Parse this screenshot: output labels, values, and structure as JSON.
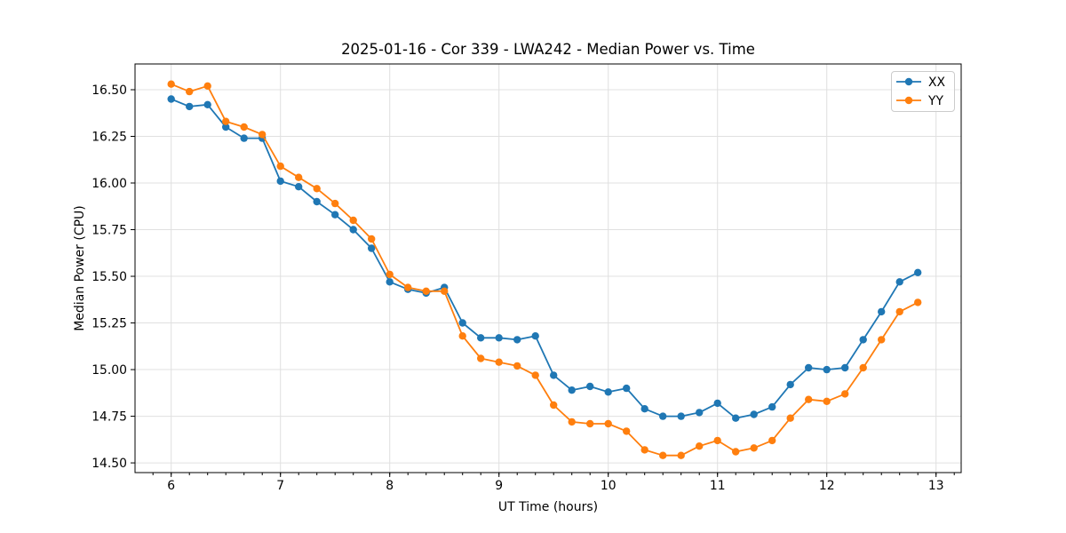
{
  "chart": {
    "title": "2025-01-16 - Cor 339 - LWA242 - Median Power vs. Time",
    "xlabel": "UT Time (hours)",
    "ylabel": "Median Power (CPU)"
  },
  "style": {
    "background": "#ffffff",
    "grid_color": "#e0e0e0",
    "spine_color": "#000000",
    "text_color": "#000000",
    "legend_border": "#cccccc",
    "legend_background": "#ffffff"
  },
  "chart_data": {
    "type": "line",
    "title": "2025-01-16 - Cor 339 - LWA242 - Median Power vs. Time",
    "xlabel": "UT Time (hours)",
    "ylabel": "Median Power (CPU)",
    "grid": true,
    "legend_position": "upper right",
    "xlim": [
      5.669,
      13.23
    ],
    "ylim": [
      14.448,
      16.638
    ],
    "x_ticks": [
      6,
      7,
      8,
      9,
      10,
      11,
      12,
      13
    ],
    "x_tick_labels": [
      "6",
      "7",
      "8",
      "9",
      "10",
      "11",
      "12",
      "13"
    ],
    "x_minor_step": 0.166667,
    "y_ticks": [
      14.5,
      14.75,
      15.0,
      15.25,
      15.5,
      15.75,
      16.0,
      16.25,
      16.5
    ],
    "y_tick_labels": [
      "14.50",
      "14.75",
      "15.00",
      "15.25",
      "15.50",
      "15.75",
      "16.00",
      "16.25",
      "16.50"
    ],
    "x": [
      6.0,
      6.1667,
      6.3333,
      6.5,
      6.6667,
      6.8333,
      7.0,
      7.1667,
      7.3333,
      7.5,
      7.6667,
      7.8333,
      8.0,
      8.1667,
      8.3333,
      8.5,
      8.6667,
      8.8333,
      9.0,
      9.1667,
      9.3333,
      9.5,
      9.6667,
      9.8333,
      10.0,
      10.1667,
      10.3333,
      10.5,
      10.6667,
      10.8333,
      11.0,
      11.1667,
      11.3333,
      11.5,
      11.6667,
      11.8333,
      12.0,
      12.1667,
      12.3333,
      12.5,
      12.6667,
      12.8333
    ],
    "series": [
      {
        "name": "XX",
        "color": "#1f77b4",
        "values": [
          16.45,
          16.41,
          16.42,
          16.3,
          16.24,
          16.24,
          16.01,
          15.98,
          15.9,
          15.83,
          15.75,
          15.65,
          15.47,
          15.43,
          15.41,
          15.44,
          15.25,
          15.17,
          15.17,
          15.16,
          15.18,
          14.97,
          14.89,
          14.91,
          14.88,
          14.9,
          14.79,
          14.75,
          14.75,
          14.77,
          14.82,
          14.74,
          14.76,
          14.8,
          14.92,
          15.01,
          15.0,
          15.01,
          15.16,
          15.31,
          15.47,
          15.52
        ]
      },
      {
        "name": "YY",
        "color": "#ff7f0e",
        "values": [
          16.53,
          16.49,
          16.52,
          16.33,
          16.3,
          16.26,
          16.09,
          16.03,
          15.97,
          15.89,
          15.8,
          15.7,
          15.51,
          15.44,
          15.42,
          15.42,
          15.18,
          15.06,
          15.04,
          15.02,
          14.97,
          14.81,
          14.72,
          14.71,
          14.71,
          14.67,
          14.57,
          14.54,
          14.54,
          14.59,
          14.62,
          14.56,
          14.58,
          14.62,
          14.74,
          14.84,
          14.83,
          14.87,
          15.01,
          15.16,
          15.31,
          15.36
        ]
      }
    ]
  }
}
